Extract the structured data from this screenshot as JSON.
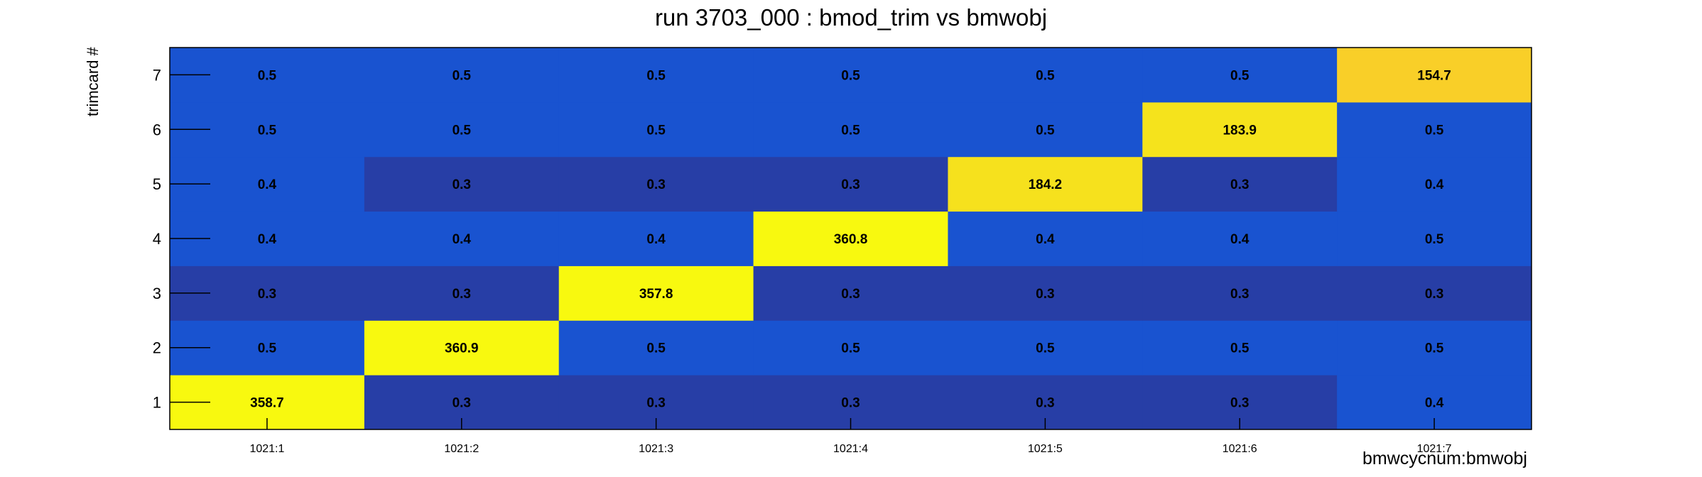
{
  "chart_data": {
    "type": "heatmap",
    "title": "run 3703_000 : bmod_trim vs bmwobj",
    "xlabel": "bmwcycnum:bmwobj",
    "ylabel": "trimcard #",
    "x_categories": [
      "1021:1",
      "1021:2",
      "1021:3",
      "1021:4",
      "1021:5",
      "1021:6",
      "1021:7"
    ],
    "y_categories": [
      "1",
      "2",
      "3",
      "4",
      "5",
      "6",
      "7"
    ],
    "values": [
      [
        358.7,
        0.3,
        0.3,
        0.3,
        0.3,
        0.3,
        0.4
      ],
      [
        0.5,
        360.9,
        0.5,
        0.5,
        0.5,
        0.5,
        0.5
      ],
      [
        0.3,
        0.3,
        357.8,
        0.3,
        0.3,
        0.3,
        0.3
      ],
      [
        0.4,
        0.4,
        0.4,
        360.8,
        0.4,
        0.4,
        0.5
      ],
      [
        0.4,
        0.3,
        0.3,
        0.3,
        184.2,
        0.3,
        0.4
      ],
      [
        0.5,
        0.5,
        0.5,
        0.5,
        0.5,
        183.9,
        0.5
      ],
      [
        0.5,
        0.5,
        0.5,
        0.5,
        0.5,
        0.5,
        154.7
      ]
    ],
    "value_labels": [
      [
        "358.7",
        "0.3",
        "0.3",
        "0.3",
        "0.3",
        "0.3",
        "0.4"
      ],
      [
        "0.5",
        "360.9",
        "0.5",
        "0.5",
        "0.5",
        "0.5",
        "0.5"
      ],
      [
        "0.3",
        "0.3",
        "357.8",
        "0.3",
        "0.3",
        "0.3",
        "0.3"
      ],
      [
        "0.4",
        "0.4",
        "0.4",
        "360.8",
        "0.4",
        "0.4",
        "0.5"
      ],
      [
        "0.4",
        "0.3",
        "0.3",
        "0.3",
        "184.2",
        "0.3",
        "0.4"
      ],
      [
        "0.5",
        "0.5",
        "0.5",
        "0.5",
        "0.5",
        "183.9",
        "0.5"
      ],
      [
        "0.5",
        "0.5",
        "0.5",
        "0.5",
        "0.5",
        "0.5",
        "154.7"
      ]
    ],
    "colors": {
      "0.3": "#273ea6",
      "0.4": "#1953d0",
      "0.5": "#1953d0",
      "154.7": "#f9cf28",
      "183.9": "#f5e31c",
      "184.2": "#f6e11d",
      "357.8": "#f8f90f",
      "358.7": "#f8f90f",
      "360.8": "#f8f90f",
      "360.9": "#f8f90f"
    },
    "grid": false,
    "legend": "none"
  }
}
